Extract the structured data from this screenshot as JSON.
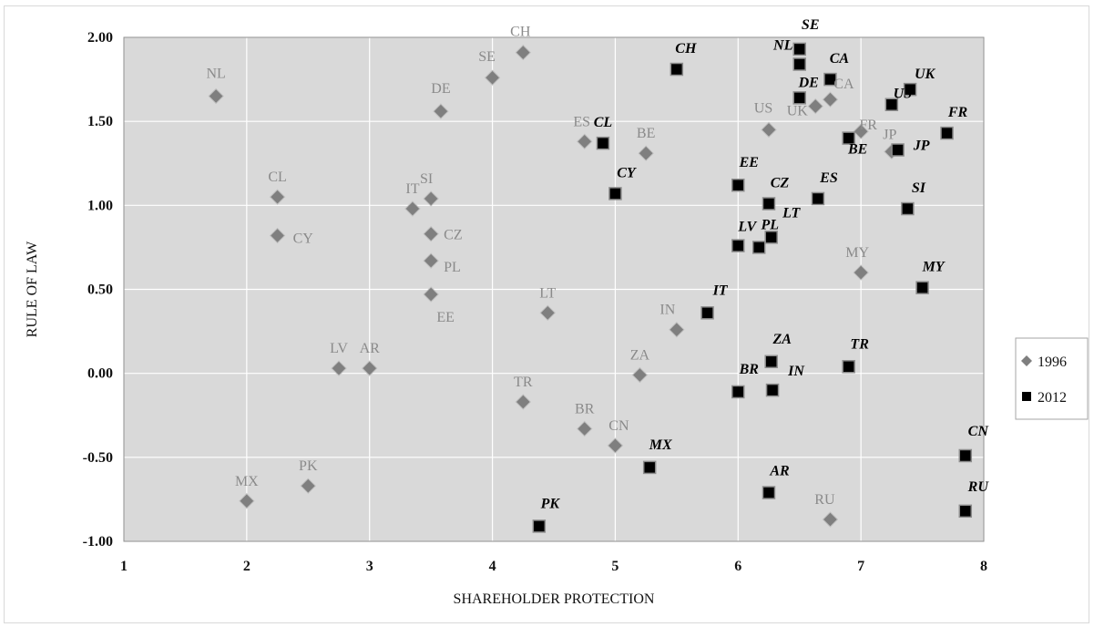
{
  "chart_data": {
    "type": "scatter",
    "title": "",
    "xlabel": "SHAREHOLDER PROTECTION",
    "ylabel": "RULE OF LAW",
    "xlim": [
      1,
      8
    ],
    "ylim": [
      -1.0,
      2.0
    ],
    "xticks": [
      1,
      2,
      3,
      4,
      5,
      6,
      7,
      8
    ],
    "xtick_labels": [
      "1",
      "2",
      "3",
      "4",
      "5",
      "6",
      "7",
      "8"
    ],
    "yticks": [
      -1.0,
      -0.5,
      0.0,
      0.5,
      1.0,
      1.5,
      2.0
    ],
    "ytick_labels": [
      "-1.00",
      "-0.50",
      "0.00",
      "0.50",
      "1.00",
      "1.50",
      "2.00"
    ],
    "grid": true,
    "legend_position": "right",
    "colors": {
      "plot_bg": "#d9d9d9",
      "grid": "#ffffff",
      "s1996": "#7f7f7f",
      "s2012": "#000000"
    },
    "series": [
      {
        "name": "1996",
        "marker": "diamond",
        "points": [
          {
            "label": "NL",
            "x": 1.75,
            "y": 1.65
          },
          {
            "label": "CL",
            "x": 2.25,
            "y": 1.05
          },
          {
            "label": "CY",
            "x": 2.25,
            "y": 0.82
          },
          {
            "label": "MX",
            "x": 2.0,
            "y": -0.76
          },
          {
            "label": "PK",
            "x": 2.5,
            "y": -0.67
          },
          {
            "label": "LV",
            "x": 2.75,
            "y": 0.03
          },
          {
            "label": "AR",
            "x": 3.0,
            "y": 0.03
          },
          {
            "label": "IT",
            "x": 3.35,
            "y": 0.98
          },
          {
            "label": "SI",
            "x": 3.5,
            "y": 1.04
          },
          {
            "label": "CZ",
            "x": 3.5,
            "y": 0.83
          },
          {
            "label": "PL",
            "x": 3.5,
            "y": 0.67
          },
          {
            "label": "EE",
            "x": 3.5,
            "y": 0.47
          },
          {
            "label": "DE",
            "x": 3.58,
            "y": 1.56
          },
          {
            "label": "SE",
            "x": 4.0,
            "y": 1.76
          },
          {
            "label": "CH",
            "x": 4.25,
            "y": 1.91
          },
          {
            "label": "LT",
            "x": 4.45,
            "y": 0.36
          },
          {
            "label": "TR",
            "x": 4.25,
            "y": -0.17
          },
          {
            "label": "ES",
            "x": 4.75,
            "y": 1.38
          },
          {
            "label": "BR",
            "x": 4.75,
            "y": -0.33
          },
          {
            "label": "CN",
            "x": 5.0,
            "y": -0.43
          },
          {
            "label": "BE",
            "x": 5.25,
            "y": 1.31
          },
          {
            "label": "ZA",
            "x": 5.2,
            "y": -0.01
          },
          {
            "label": "IN",
            "x": 5.5,
            "y": 0.26
          },
          {
            "label": "US",
            "x": 6.25,
            "y": 1.45
          },
          {
            "label": "UK",
            "x": 6.63,
            "y": 1.59
          },
          {
            "label": "CA",
            "x": 6.75,
            "y": 1.63
          },
          {
            "label": "FR",
            "x": 7.0,
            "y": 1.44
          },
          {
            "label": "JP",
            "x": 7.25,
            "y": 1.32
          },
          {
            "label": "MY",
            "x": 7.0,
            "y": 0.6
          },
          {
            "label": "RU",
            "x": 6.75,
            "y": -0.87
          }
        ]
      },
      {
        "name": "2012",
        "marker": "square",
        "points": [
          {
            "label": "SE",
            "x": 6.5,
            "y": 1.93
          },
          {
            "label": "NL",
            "x": 6.5,
            "y": 1.84
          },
          {
            "label": "CA",
            "x": 6.75,
            "y": 1.75
          },
          {
            "label": "DE",
            "x": 6.5,
            "y": 1.64
          },
          {
            "label": "UK",
            "x": 7.4,
            "y": 1.69
          },
          {
            "label": "US",
            "x": 7.25,
            "y": 1.6
          },
          {
            "label": "BE",
            "x": 6.9,
            "y": 1.4
          },
          {
            "label": "JP",
            "x": 7.3,
            "y": 1.33
          },
          {
            "label": "FR",
            "x": 7.7,
            "y": 1.43
          },
          {
            "label": "CH",
            "x": 5.5,
            "y": 1.81
          },
          {
            "label": "CL",
            "x": 4.9,
            "y": 1.37
          },
          {
            "label": "CY",
            "x": 5.0,
            "y": 1.07
          },
          {
            "label": "EE",
            "x": 6.0,
            "y": 1.12
          },
          {
            "label": "CZ",
            "x": 6.25,
            "y": 1.01
          },
          {
            "label": "ES",
            "x": 6.65,
            "y": 1.04
          },
          {
            "label": "SI",
            "x": 7.38,
            "y": 0.98
          },
          {
            "label": "LV",
            "x": 6.0,
            "y": 0.76
          },
          {
            "label": "PL",
            "x": 6.17,
            "y": 0.75
          },
          {
            "label": "LT",
            "x": 6.27,
            "y": 0.81
          },
          {
            "label": "MY",
            "x": 7.5,
            "y": 0.51
          },
          {
            "label": "IT",
            "x": 5.75,
            "y": 0.36
          },
          {
            "label": "ZA",
            "x": 6.27,
            "y": 0.07
          },
          {
            "label": "TR",
            "x": 6.9,
            "y": 0.04
          },
          {
            "label": "BR",
            "x": 6.0,
            "y": -0.11
          },
          {
            "label": "IN",
            "x": 6.28,
            "y": -0.1
          },
          {
            "label": "MX",
            "x": 5.28,
            "y": -0.56
          },
          {
            "label": "AR",
            "x": 6.25,
            "y": -0.71
          },
          {
            "label": "PK",
            "x": 4.38,
            "y": -0.91
          },
          {
            "label": "CN",
            "x": 7.85,
            "y": -0.49
          },
          {
            "label": "RU",
            "x": 7.85,
            "y": -0.82
          }
        ]
      }
    ]
  }
}
